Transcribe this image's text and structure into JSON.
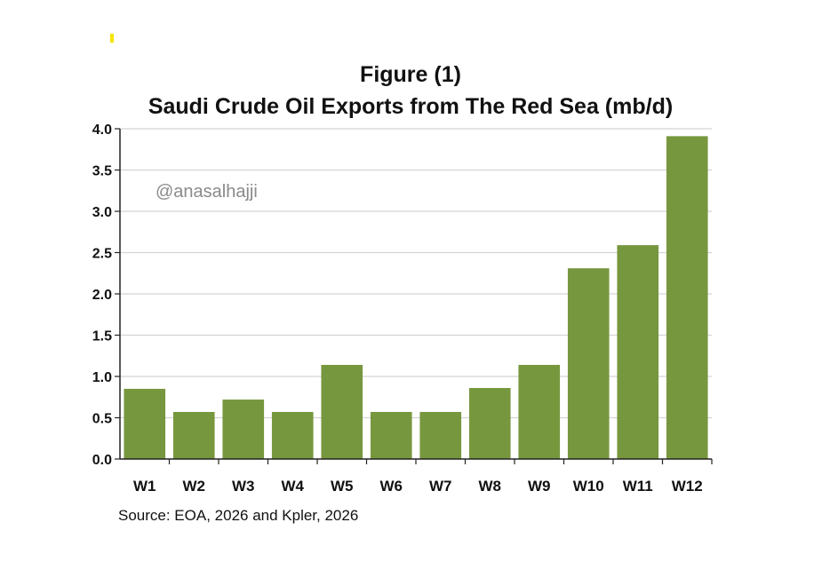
{
  "chart_data": {
    "type": "bar",
    "title": "Figure (1)",
    "subtitle": "Saudi Crude Oil Exports from The Red Sea  (mb/d)",
    "categories": [
      "W1",
      "W2",
      "W3",
      "W4",
      "W5",
      "W6",
      "W7",
      "W8",
      "W9",
      "W10",
      "W11",
      "W12"
    ],
    "values": [
      0.85,
      0.57,
      0.72,
      0.57,
      1.14,
      0.57,
      0.57,
      0.86,
      1.14,
      2.31,
      2.59,
      3.91
    ],
    "ylim": [
      0,
      4.0
    ],
    "yticks": [
      "0.0",
      "0.5",
      "1.0",
      "1.5",
      "2.0",
      "2.5",
      "3.0",
      "3.5",
      "4.0"
    ],
    "xlabel": "",
    "ylabel": "",
    "grid": true,
    "bar_color": "#77973e",
    "annotation": "@anasalhajji",
    "source": "Source: EOA, 2026 and Kpler, 2026"
  }
}
